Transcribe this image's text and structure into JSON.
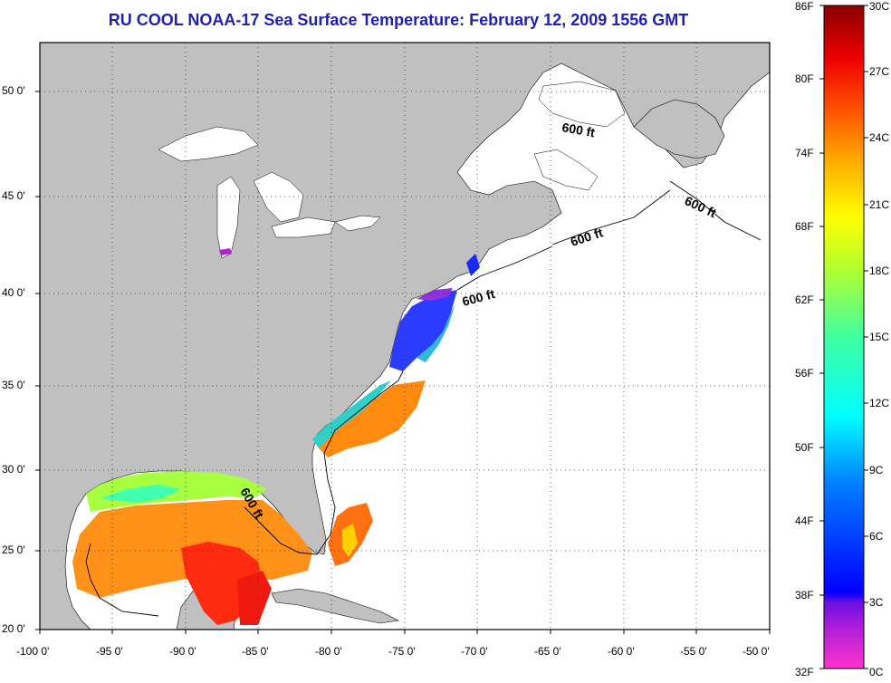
{
  "title": "RU COOL  NOAA-17  Sea Surface Temperature:  February 12, 2009 1556 GMT",
  "map": {
    "region": "US East Coast and Gulf of Mexico",
    "lon_range": [
      -100,
      -50
    ],
    "lat_range": [
      20,
      52
    ],
    "isobath_label": "600 ft",
    "colors": {
      "land": "#c0c0c0",
      "ocean_nodata": "#ffffff",
      "grid": "#333333",
      "title": "#1f1fb0"
    }
  },
  "axes": {
    "x_ticks": [
      "-100 0'",
      "-95 0'",
      "-90 0'",
      "-85 0'",
      "-80 0'",
      "-75 0'",
      "-70 0'",
      "-65 0'",
      "-60 0'",
      "-55 0'",
      "-50 0'"
    ],
    "y_ticks": [
      "20 0'",
      "25 0'",
      "30 0'",
      "35 0'",
      "40 0'",
      "45 0'",
      "50 0'"
    ]
  },
  "colorbar": {
    "fahrenheit": [
      "86F",
      "80F",
      "74F",
      "68F",
      "62F",
      "56F",
      "50F",
      "44F",
      "38F",
      "32F"
    ],
    "celsius": [
      "30C",
      "27C",
      "24C",
      "21C",
      "18C",
      "15C",
      "12C",
      "9C",
      "6C",
      "3C",
      "0C"
    ]
  }
}
